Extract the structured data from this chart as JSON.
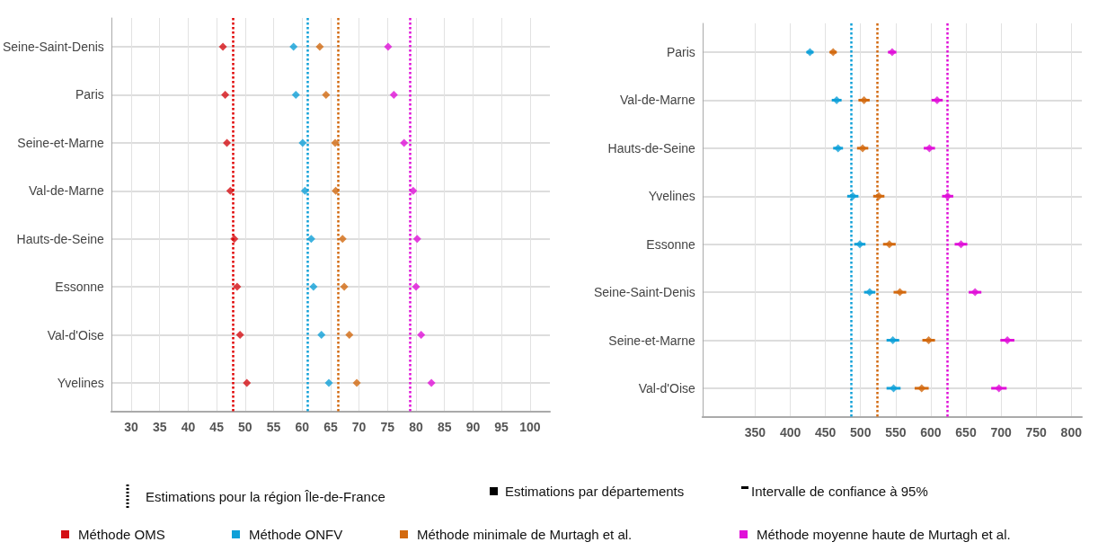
{
  "chart_data": [
    {
      "type": "scatter",
      "orientation": "horizontal",
      "categories": [
        "Seine-Saint-Denis",
        "Paris",
        "Seine-et-Marne",
        "Val-de-Marne",
        "Hauts-de-Seine",
        "Essonne",
        "Val-d'Oise",
        "Yvelines"
      ],
      "series": [
        {
          "name": "Méthode OMS",
          "color": "#d40f14",
          "values": [
            46.1,
            46.5,
            46.8,
            47.4,
            48.1,
            48.6,
            49.1,
            50.3
          ]
        },
        {
          "name": "Méthode ONFV",
          "color": "#0fa0d8",
          "values": [
            58.5,
            58.9,
            60.1,
            60.5,
            61.6,
            62.0,
            63.4,
            64.7
          ]
        },
        {
          "name": "Méthode minimale de Murtagh et al.",
          "color": "#d2690f",
          "values": [
            63.1,
            64.2,
            65.8,
            65.9,
            67.1,
            67.4,
            68.3,
            69.6
          ]
        },
        {
          "name": "Méthode moyenne haute de Murtagh et al.",
          "color": "#e010d8",
          "values": [
            75.1,
            76.1,
            77.9,
            79.5,
            80.2,
            80.0,
            80.9,
            82.7
          ]
        }
      ],
      "xlim": [
        26.5,
        103.5
      ],
      "xticks": [
        30,
        35,
        40,
        45,
        50,
        55,
        60,
        65,
        70,
        75,
        80,
        85,
        90,
        95,
        100
      ],
      "ref_lines": [
        {
          "axis": "x",
          "value": 47.8,
          "color": "#e00000",
          "line_style": "dotted"
        },
        {
          "axis": "x",
          "value": 61.0,
          "color": "#0fa0d8",
          "line_style": "dotted"
        },
        {
          "axis": "x",
          "value": 66.3,
          "color": "#d2690f",
          "line_style": "dotted"
        },
        {
          "axis": "x",
          "value": 78.9,
          "color": "#e010d8",
          "line_style": "dotted"
        }
      ],
      "grid": true,
      "marker": "diamond",
      "legend": "bottom",
      "annotations": [
        "Estimations pour la région Île-de-France",
        "Estimations par départements",
        "Intervalle de confiance à 95%"
      ]
    },
    {
      "type": "scatter",
      "orientation": "horizontal",
      "categories": [
        "Paris",
        "Val-de-Marne",
        "Hauts-de-Seine",
        "Yvelines",
        "Essonne",
        "Seine-Saint-Denis",
        "Seine-et-Marne",
        "Val-d'Oise"
      ],
      "series": [
        {
          "name": "Méthode ONFV",
          "color": "#0fa0d8",
          "values": [
            428,
            466,
            468,
            489,
            499,
            513,
            546,
            547
          ],
          "errors": [
            5,
            7,
            7,
            8,
            8,
            8,
            9,
            10
          ]
        },
        {
          "name": "Méthode minimale de Murtagh et al.",
          "color": "#d2690f",
          "values": [
            461,
            505,
            503,
            526,
            541,
            556,
            597,
            587
          ],
          "errors": [
            5,
            8,
            8,
            8,
            9,
            9,
            9,
            10
          ]
        },
        {
          "name": "Méthode moyenne haute de Murtagh et al.",
          "color": "#e010d8",
          "values": [
            545,
            609,
            598,
            624,
            643,
            663,
            709,
            697
          ],
          "errors": [
            6,
            8,
            8,
            8,
            9,
            9,
            10,
            11
          ]
        }
      ],
      "xlim": [
        275,
        815
      ],
      "xticks": [
        350,
        400,
        450,
        500,
        550,
        600,
        650,
        700,
        750,
        800
      ],
      "ref_lines": [
        {
          "axis": "x",
          "value": 486,
          "color": "#0fa0d8",
          "line_style": "dotted"
        },
        {
          "axis": "x",
          "value": 524,
          "color": "#d2690f",
          "line_style": "dotted"
        },
        {
          "axis": "x",
          "value": 624,
          "color": "#e010d8",
          "line_style": "dotted"
        }
      ],
      "grid": true,
      "marker": "diamond",
      "legend": "bottom"
    }
  ]
}
